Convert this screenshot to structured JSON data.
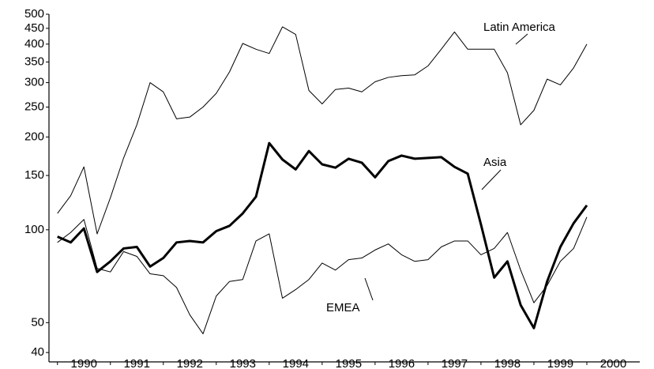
{
  "chart_data": {
    "type": "line",
    "log_y": true,
    "xlim": [
      1989.84,
      2001
    ],
    "xticks": [
      1990,
      1991,
      1992,
      1993,
      1994,
      1995,
      1996,
      1997,
      1998,
      1999,
      2000
    ],
    "ylim": [
      37.3,
      500
    ],
    "yticks": [
      40,
      50,
      100,
      150,
      200,
      250,
      300,
      350,
      400,
      450,
      500
    ],
    "x": [
      1990,
      1990.25,
      1990.5,
      1990.75,
      1991,
      1991.25,
      1991.5,
      1991.75,
      1992,
      1992.25,
      1992.5,
      1992.75,
      1993,
      1993.25,
      1993.5,
      1993.75,
      1994,
      1994.25,
      1994.5,
      1994.75,
      1995,
      1995.25,
      1995.5,
      1995.75,
      1996,
      1996.25,
      1996.5,
      1996.75,
      1997,
      1997.25,
      1997.5,
      1997.75,
      1998,
      1998.25,
      1998.5,
      1998.75,
      1999,
      1999.25,
      1999.5,
      1999.75,
      2000
    ],
    "series": [
      {
        "name": "Latin America",
        "color": "#000000",
        "line_width": 1,
        "values": [
          113,
          129,
          160,
          97,
          127,
          171,
          219,
          300,
          280,
          229,
          232,
          250,
          277,
          325,
          402,
          385,
          373,
          455,
          430,
          283,
          256,
          285,
          288,
          280,
          302,
          312,
          316,
          318,
          340,
          385,
          438,
          385,
          385,
          385,
          323,
          219,
          244,
          308,
          295,
          335,
          400
        ]
      },
      {
        "name": "Asia",
        "color": "#000000",
        "line_width": 3,
        "values": [
          95,
          91,
          101,
          73,
          79,
          87,
          88,
          76,
          81,
          91,
          92,
          91,
          99,
          103,
          113,
          128,
          191,
          169,
          157,
          180,
          163,
          159,
          170,
          165,
          148,
          167,
          174,
          170,
          171,
          172,
          160,
          152,
          104,
          70,
          79,
          57,
          48,
          68,
          88,
          105,
          120
        ]
      },
      {
        "name": "EMEA",
        "color": "#000000",
        "line_width": 1,
        "values": [
          91,
          98,
          108,
          75,
          73,
          85,
          82,
          72,
          71,
          65,
          53,
          46,
          61,
          68,
          69,
          92,
          97,
          60,
          64,
          69,
          78,
          74,
          80,
          81,
          86,
          90,
          83,
          79,
          80,
          88,
          92,
          92,
          83,
          87,
          98,
          74,
          58,
          66,
          79,
          87,
          110
        ]
      }
    ]
  }
}
